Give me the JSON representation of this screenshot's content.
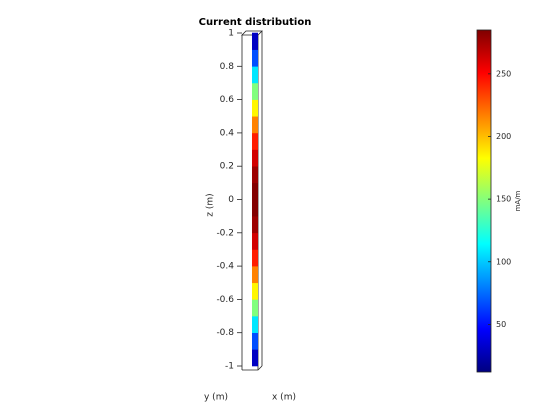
{
  "chart_data": {
    "type": "current-strip",
    "title": "Current distribution",
    "zlabel": "z (m)",
    "ylabel": "y (m)",
    "xlabel": "x (m)",
    "zlim": [
      -1,
      1
    ],
    "zticks": [
      -1,
      -0.8,
      -0.6,
      -0.4,
      -0.2,
      0,
      0.2,
      0.4,
      0.6,
      0.8,
      1
    ],
    "z": [
      -0.95,
      -0.85,
      -0.75,
      -0.65,
      -0.55,
      -0.45,
      -0.35,
      -0.25,
      -0.15,
      -0.05,
      0.05,
      0.15,
      0.25,
      0.35,
      0.45,
      0.55,
      0.65,
      0.75,
      0.85,
      0.95
    ],
    "values": [
      30,
      67,
      108,
      149,
      185,
      216,
      243,
      263,
      277,
      284,
      284,
      277,
      263,
      243,
      216,
      185,
      149,
      108,
      67,
      30
    ],
    "colorbar": {
      "label": "mA/m",
      "clim": [
        12,
        285
      ],
      "ticks": [
        50,
        100,
        150,
        200,
        250
      ],
      "colormap": "jet"
    }
  }
}
